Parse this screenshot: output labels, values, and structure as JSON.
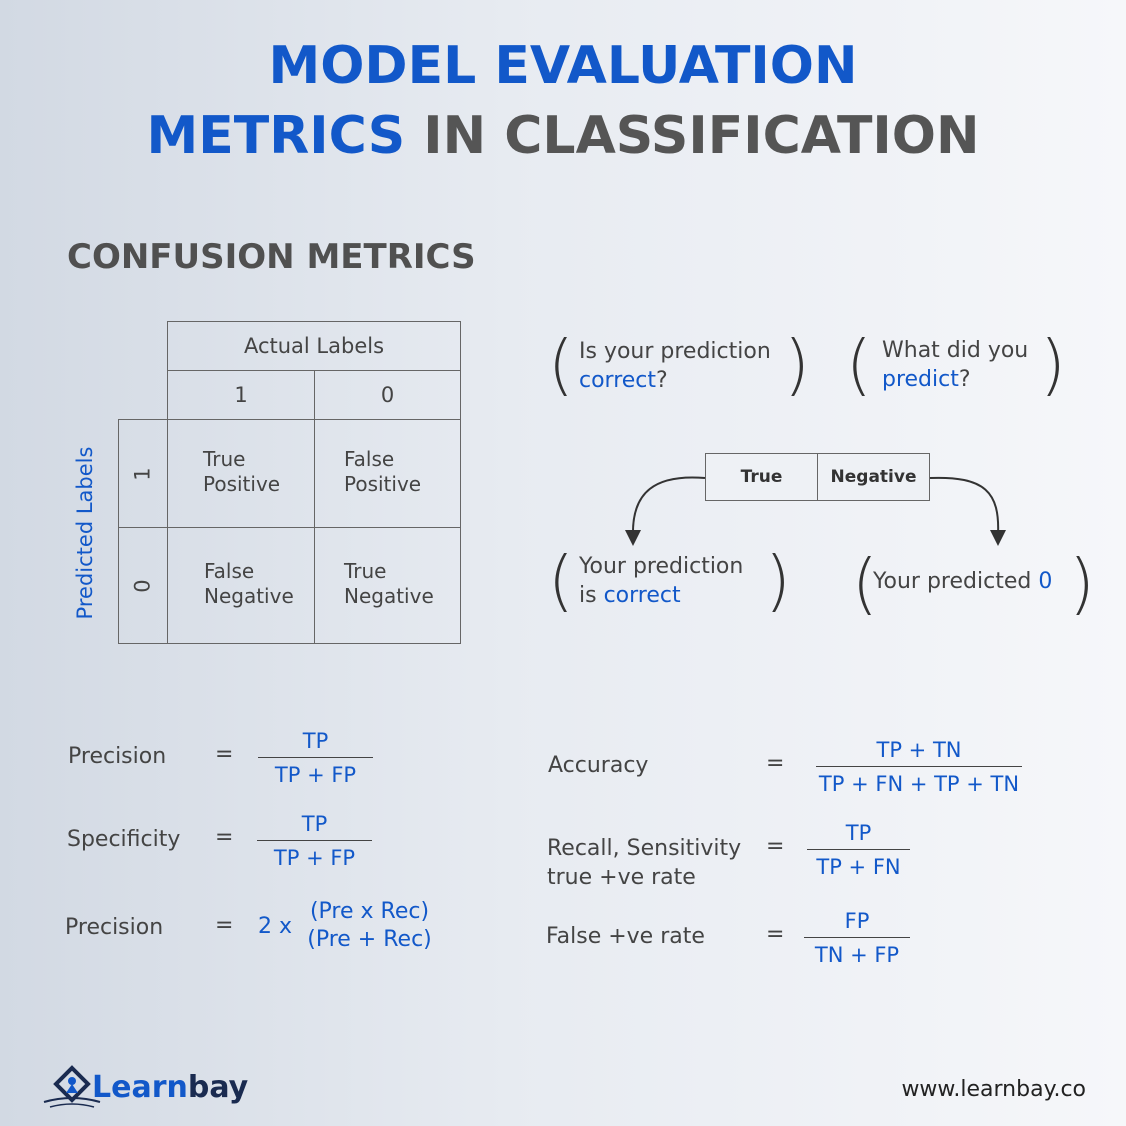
{
  "title": {
    "line1": "MODEL EVALUATION",
    "line2_blue": "METRICS",
    "line2_grey": "IN CLASSIFICATION"
  },
  "section_title": "CONFUSION METRICS",
  "matrix": {
    "actual_header": "Actual Labels",
    "actual_1": "1",
    "actual_0": "0",
    "predicted_header": "Predicted Labels",
    "predicted_1": "1",
    "predicted_0": "0",
    "tp": [
      "True",
      "Positive"
    ],
    "fp": [
      "False",
      "Positive"
    ],
    "fn": [
      "False",
      "Negative"
    ],
    "tn": [
      "True",
      "Negative"
    ]
  },
  "questions": {
    "q1_line1": "Is your prediction",
    "q1_line2_blue": "correct",
    "q1_line2_end": "?",
    "q2_line1": "What did you",
    "q2_line2_blue": "predict",
    "q2_line2_end": "?"
  },
  "flow": {
    "box_left": "True",
    "box_right": "Negative",
    "left_line1": "Your prediction",
    "left_line2_pre": "is ",
    "left_line2_blue": "correct",
    "right_pre": "Your predicted ",
    "right_blue": "0"
  },
  "formulas_left": [
    {
      "label": "Precision",
      "eq": "=",
      "num": "TP",
      "den": "TP + FP"
    },
    {
      "label": "Specificity",
      "eq": "=",
      "num": "TP",
      "den": "TP + FP"
    },
    {
      "label": "Precision",
      "eq": "=",
      "prefix": "2 x",
      "num": "(Pre x Rec)",
      "den": "(Pre + Rec)"
    }
  ],
  "formulas_right": [
    {
      "label": "Accuracy",
      "eq": "=",
      "num": "TP + TN",
      "den": "TP + FN + TP + TN"
    },
    {
      "label_line1": "Recall, Sensitivity",
      "label_line2": "true +ve rate",
      "eq": "=",
      "num": "TP",
      "den": "TP + FN"
    },
    {
      "label": "False +ve rate",
      "eq": "=",
      "num": "FP",
      "den": "TN + FP"
    }
  ],
  "footer": {
    "logo_blue": "Learn",
    "logo_dark": "bay",
    "url": "www.learnbay.co"
  },
  "colors": {
    "accent_blue": "#1258c9",
    "grey_text": "#555555"
  }
}
